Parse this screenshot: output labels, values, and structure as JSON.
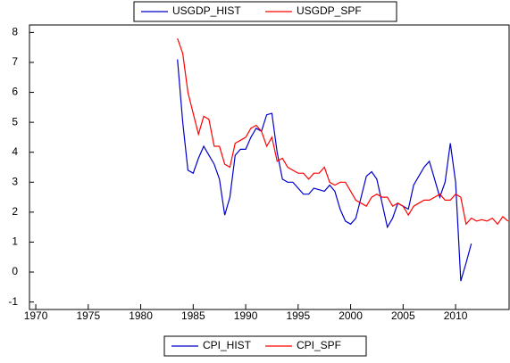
{
  "chart_data": {
    "type": "line",
    "x": [
      1983.5,
      1984,
      1984.5,
      1985,
      1985.5,
      1986,
      1986.5,
      1987,
      1987.5,
      1988,
      1988.5,
      1989,
      1989.5,
      1990,
      1990.5,
      1991,
      1991.5,
      1992,
      1992.5,
      1993,
      1993.5,
      1994,
      1994.5,
      1995,
      1995.5,
      1996,
      1996.5,
      1997,
      1997.5,
      1998,
      1998.5,
      1999,
      1999.5,
      2000,
      2000.5,
      2001,
      2001.5,
      2002,
      2002.5,
      2003,
      2003.5,
      2004,
      2004.5,
      2005,
      2005.5,
      2006,
      2006.5,
      2007,
      2007.5,
      2008,
      2008.5,
      2009,
      2009.5,
      2010,
      2010.5,
      2011,
      2011.5,
      2012,
      2012.5,
      2013,
      2013.5,
      2014,
      2014.5,
      2015
    ],
    "series": [
      {
        "name": "USGDP_HIST",
        "color": "#0000cc",
        "values": [
          7.1,
          5.0,
          3.4,
          3.3,
          3.8,
          4.2,
          3.9,
          3.6,
          3.1,
          1.9,
          2.5,
          3.9,
          4.1,
          4.1,
          4.5,
          4.8,
          4.7,
          5.25,
          5.3,
          4.0,
          3.1,
          3.0,
          3.0,
          2.8,
          2.6,
          2.6,
          2.8,
          2.75,
          2.7,
          2.9,
          2.7,
          2.1,
          1.7,
          1.6,
          1.8,
          2.5,
          3.2,
          3.35,
          3.1,
          2.3,
          1.5,
          1.8,
          2.3,
          2.2,
          2.1,
          2.9,
          3.2,
          3.5,
          3.7,
          3.1,
          2.5,
          3.0,
          4.3,
          3.0,
          -0.3,
          0.3,
          0.95,
          null,
          null,
          null,
          null,
          null,
          null,
          null
        ]
      },
      {
        "name": "USGDP_SPF",
        "color": "#ff0000",
        "values": [
          7.8,
          7.3,
          6.0,
          5.3,
          4.6,
          5.2,
          5.1,
          4.2,
          4.2,
          3.6,
          3.5,
          4.3,
          4.4,
          4.5,
          4.8,
          4.9,
          4.7,
          4.2,
          4.5,
          3.7,
          3.8,
          3.5,
          3.4,
          3.3,
          3.3,
          3.1,
          3.3,
          3.3,
          3.5,
          3.0,
          2.9,
          3.0,
          3.0,
          2.7,
          2.4,
          2.3,
          2.2,
          2.5,
          2.6,
          2.5,
          2.5,
          2.2,
          2.3,
          2.2,
          1.9,
          2.2,
          2.3,
          2.4,
          2.4,
          2.5,
          2.6,
          2.4,
          2.4,
          2.6,
          2.5,
          1.6,
          1.8,
          1.7,
          1.75,
          1.7,
          1.8,
          1.6,
          1.85,
          1.7
        ]
      }
    ],
    "legend2": [
      {
        "name": "CPI_HIST",
        "color": "#0000cc"
      },
      {
        "name": "CPI_SPF",
        "color": "#ff0000"
      }
    ],
    "xlim": [
      1969.4,
      2015.1
    ],
    "xticks": [
      1970,
      1975,
      1980,
      1985,
      1990,
      1995,
      2000,
      2005,
      2010
    ],
    "ylim": [
      -1.25,
      8.25
    ],
    "yticks": [
      -1,
      0,
      1,
      2,
      3,
      4,
      5,
      6,
      7,
      8
    ]
  }
}
